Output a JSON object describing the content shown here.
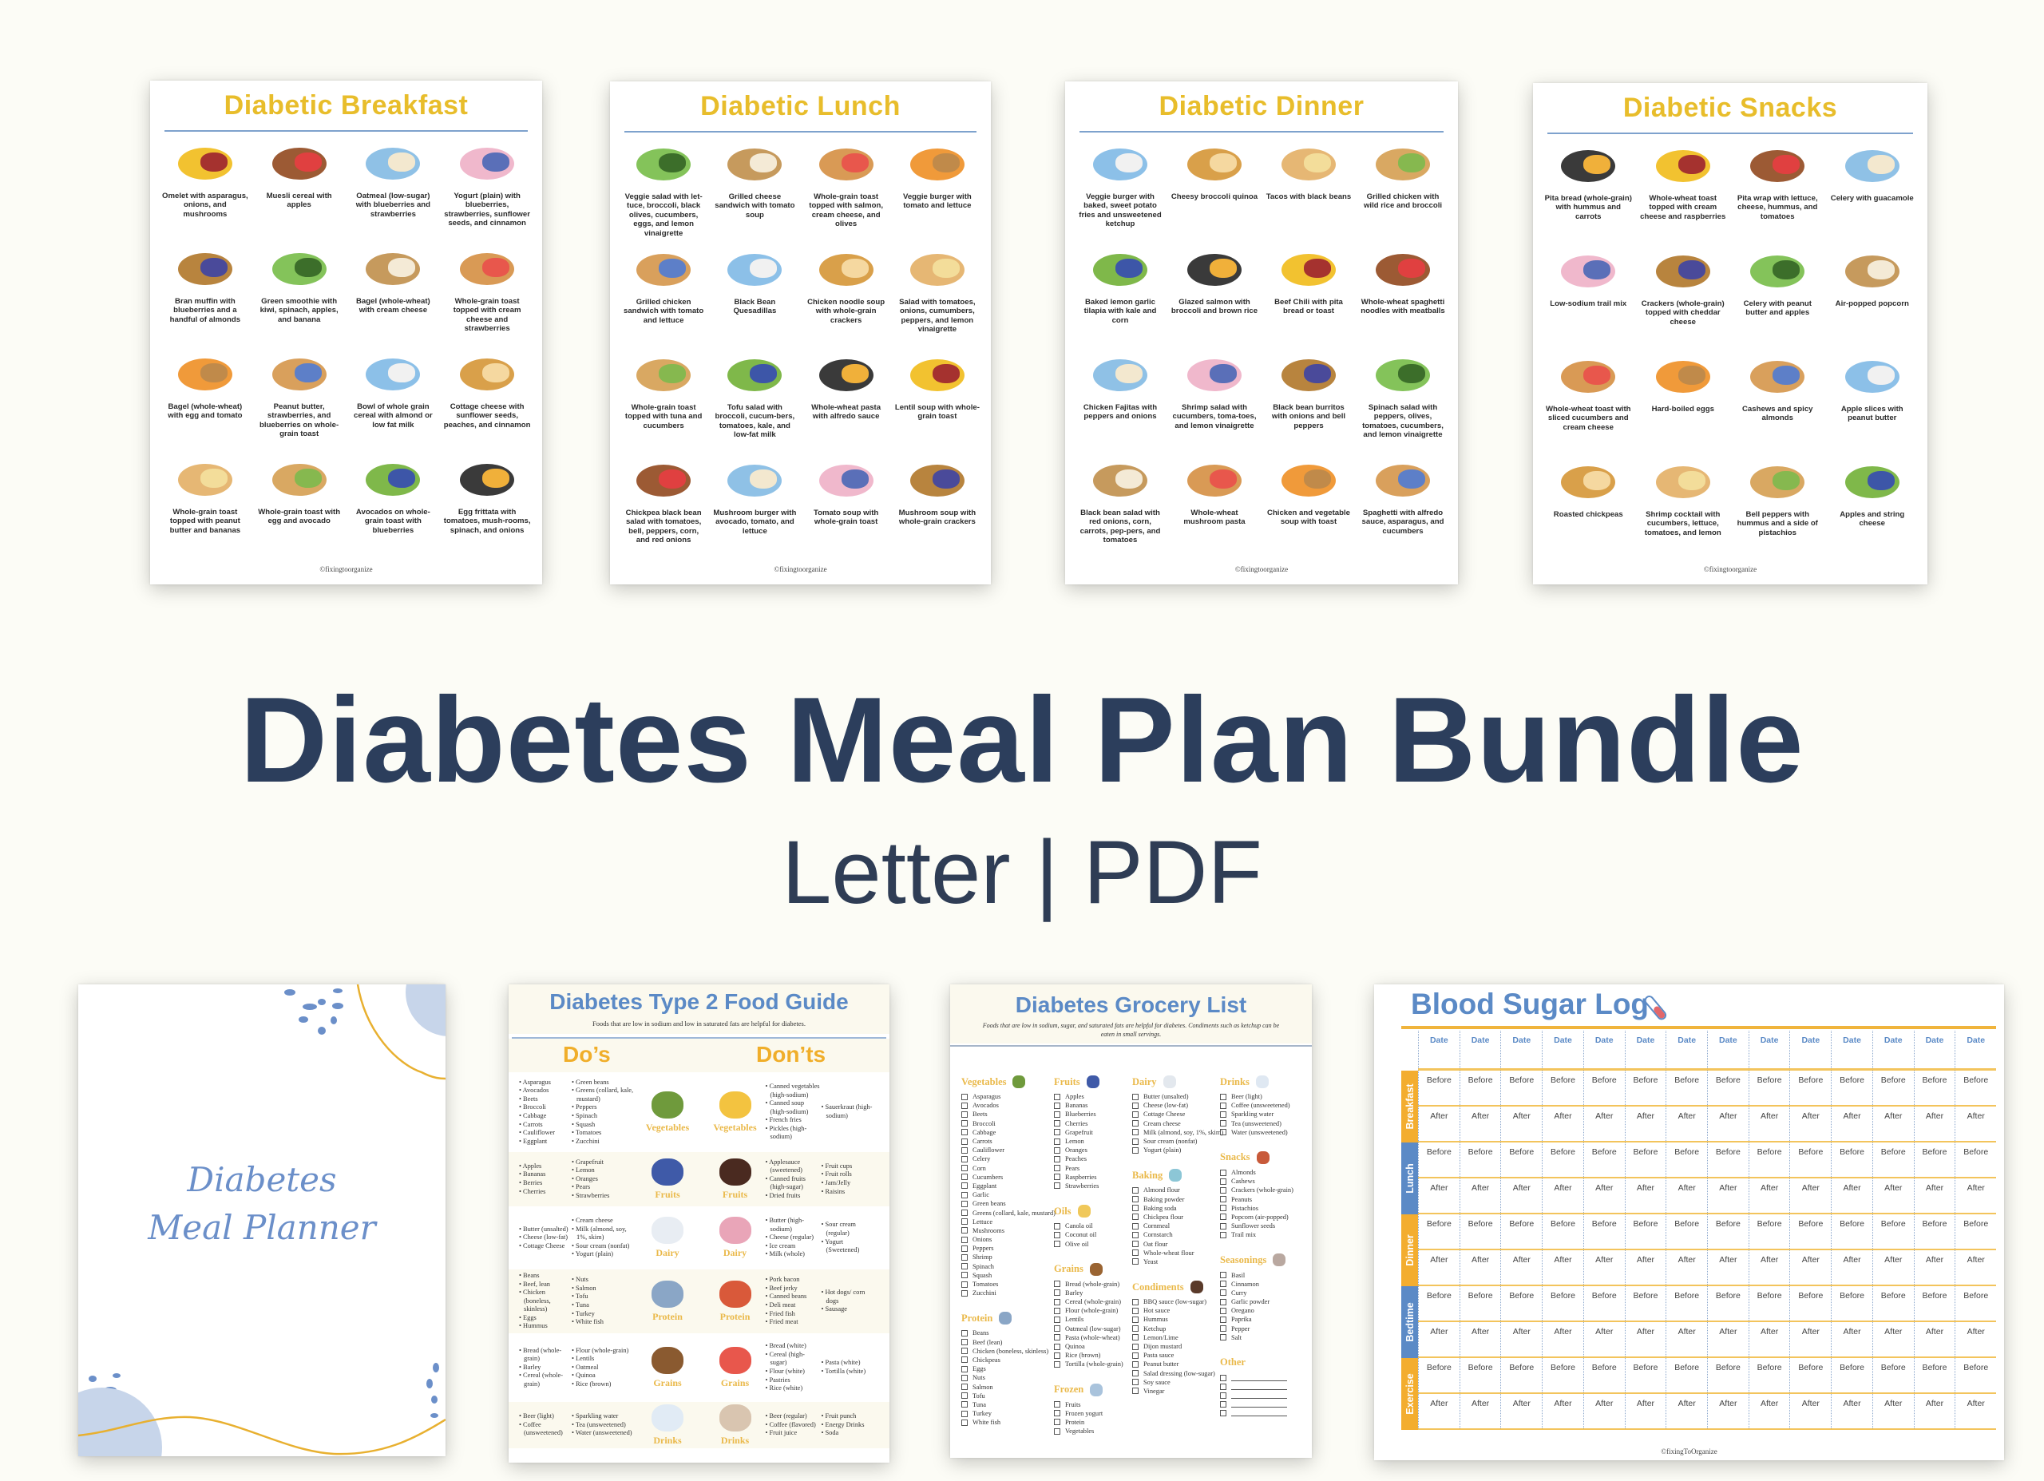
{
  "headline": "Diabetes Meal Plan Bundle",
  "subline": "Letter | PDF",
  "colors": {
    "navy": "#2c3e5c",
    "gold": "#e8bd2b",
    "blue": "#5b8ac6",
    "orange": "#f0b43c",
    "background": "#fcfcf6"
  },
  "food_pages": [
    {
      "title": "Diabetic Breakfast",
      "footer": "©fixingtoorganize",
      "items": [
        "Omelet with asparagus, onions, and mushrooms",
        "Muesli cereal with apples",
        "Oatmeal (low-sugar) with blueberries and strawberries",
        "Yogurt (plain) with blueberries, strawberries, sunflower seeds, and cinnamon",
        "Bran muffin with blueberries and a handful of almonds",
        "Green smoothie with kiwi, spinach, apples, and banana",
        "Bagel (whole-wheat) with cream cheese",
        "Whole-grain toast topped with cream cheese and strawberries",
        "Bagel (whole-wheat) with egg and tomato",
        "Peanut butter, strawberries, and blueberries on whole-grain toast",
        "Bowl of whole grain cereal with almond or low fat milk",
        "Cottage cheese with sunflower seeds, peaches, and cinnamon",
        "Whole-grain toast topped with peanut butter and bananas",
        "Whole-grain toast with egg and avocado",
        "Avocados on whole-grain toast with blueberries",
        "Egg frittata with tomatoes, mush-rooms, spinach, and onions"
      ]
    },
    {
      "title": "Diabetic Lunch",
      "footer": "©fixingtoorganize",
      "items": [
        "Veggie salad with let-tuce, broccoli, black olives, cucumbers, eggs, and lemon vinaigrette",
        "Grilled cheese sandwich with tomato soup",
        "Whole-grain toast topped with salmon, cream cheese, and olives",
        "Veggie burger with tomato and lettuce",
        "Grilled chicken sandwich with tomato and lettuce",
        "Black Bean Quesadillas",
        "Chicken noodle soup with whole-grain crackers",
        "Salad with tomatoes, onions, cumumbers, peppers, and lemon vinaigrette",
        "Whole-grain toast topped with tuna and cucumbers",
        "Tofu salad with broccoli, cucum-bers, tomatoes, kale, and low-fat milk",
        "Whole-wheat pasta with alfredo sauce",
        "Lentil soup with whole-grain toast",
        "Chickpea black bean salad with tomatoes, bell, peppers, corn, and red onions",
        "Mushroom burger with avocado, tomato, and lettuce",
        "Tomato soup with whole-grain toast",
        "Mushroom soup with whole-grain crackers"
      ]
    },
    {
      "title": "Diabetic Dinner",
      "footer": "©fixingtoorganize",
      "items": [
        "Veggie burger with baked, sweet potato fries and unsweetened ketchup",
        "Cheesy broccoli quinoa",
        "Tacos with black beans",
        "Grilled chicken with wild rice and broccoli",
        "Baked lemon garlic tilapia with kale and corn",
        "Glazed salmon with broccoli and brown rice",
        "Beef Chili with pita bread or toast",
        "Whole-wheat spaghetti noodles with meatballs",
        "Chicken Fajitas with peppers and onions",
        "Shrimp salad with cucumbers, toma-toes, and lemon vinaigrette",
        "Black bean burritos with onions and bell peppers",
        "Spinach salad with peppers, olives, tomatoes, cucumbers, and lemon vinaigrette",
        "Black bean salad with red onions, corn, carrots, pep-pers, and tomatoes",
        "Whole-wheat mushroom pasta",
        "Chicken and vegetable soup with toast",
        "Spaghetti with alfredo sauce, asparagus, and cucumbers"
      ]
    },
    {
      "title": "Diabetic Snacks",
      "footer": "©fixingtoorganize",
      "items": [
        "Pita bread (whole-grain) with hummus and carrots",
        "Whole-wheat toast topped with cream cheese and raspberries",
        "Pita wrap with lettuce, cheese, hummus, and tomatoes",
        "Celery with guacamole",
        "Low-sodium trail mix",
        "Crackers (whole-grain) topped with cheddar cheese",
        "Celery with peanut butter and apples",
        "Air-popped popcorn",
        "Whole-wheat toast with sliced cucumbers and cream cheese",
        "Hard-boiled eggs",
        "Cashews and spicy almonds",
        "Apple slices with peanut butter",
        "Roasted chickpeas",
        "Shrimp cocktail with cucumbers, lettuce, tomatoes, and lemon",
        "Bell peppers with hummus and a side of pistachios",
        "Apples and string cheese"
      ]
    }
  ],
  "planner": {
    "line1": "Diabetes",
    "line2": "Meal Planner"
  },
  "food_guide": {
    "title": "Diabetes Type 2 Food Guide",
    "subtitle": "Foods that are low in sodium and low in saturated fats are helpful for diabetes.",
    "dos": "Do’s",
    "donts": "Don’ts",
    "rows": [
      {
        "category": "Vegetables",
        "do_icon": "avocado-icon",
        "dont_icon": "french-fries-icon",
        "dos1": [
          "Asparagus",
          "Avocados",
          "Beets",
          "Broccoli",
          "Cabbage",
          "Carrots",
          "Cauliflower",
          "Eggplant"
        ],
        "dos2": [
          "Green beans",
          "Greens (collard, kale, mustard)",
          "Peppers",
          "Spinach",
          "Squash",
          "Tomatoes",
          "Zucchini"
        ],
        "donts1": [
          "Canned vegetables (high-sodium)",
          "Canned soup (high-sodium)",
          "French fries",
          "Pickles (high-sodium)"
        ],
        "donts2": [
          "Sauerkraut (high-sodium)"
        ]
      },
      {
        "category": "Fruits",
        "do_icon": "blueberries-icon",
        "dont_icon": "raisins-icon",
        "dos1": [
          "Apples",
          "Bananas",
          "Berries",
          "Cherries"
        ],
        "dos2": [
          "Grapefruit",
          "Lemon",
          "Oranges",
          "Pears",
          "Strawberries"
        ],
        "donts1": [
          "Applesauce (sweetened)",
          "Canned fruits (high-sugar)",
          "Dried fruits"
        ],
        "donts2": [
          "Fruit cups",
          "Fruit rolls",
          "Jam/Jelly",
          "Raisins"
        ]
      },
      {
        "category": "Dairy",
        "do_icon": "milk-jug-icon",
        "dont_icon": "sundae-icon",
        "dos1": [
          "Butter (unsalted)",
          "Cheese (low-fat)",
          "Cottage Cheese"
        ],
        "dos2": [
          "Cream cheese",
          "Milk (almond, soy, 1%, skim)",
          "Sour cream (nonfat)",
          "Yogurt (plain)"
        ],
        "donts1": [
          "Butter (high-sodium)",
          "Cheese (regular)",
          "Ice cream",
          "Milk (whole)"
        ],
        "donts2": [
          "Sour cream (regular)",
          "Yogurt (Sweetened)"
        ]
      },
      {
        "category": "Protein",
        "do_icon": "fish-icon",
        "dont_icon": "hot-dog-icon",
        "dos1": [
          "Beans",
          "Beef, lean",
          "Chicken (boneless, skinless)",
          "Eggs",
          "Hummus"
        ],
        "dos2": [
          "Nuts",
          "Salmon",
          "Tofu",
          "Tuna",
          "Turkey",
          "White fish"
        ],
        "donts1": [
          "Pork bacon",
          "Beef jerky",
          "Canned beans",
          "Deli meat",
          "Fried fish",
          "Fried meat"
        ],
        "donts2": [
          "Hot dogs/ corn dogs",
          "Sausage"
        ]
      },
      {
        "category": "Grains",
        "do_icon": "bread-icon",
        "dont_icon": "donut-icon",
        "dos1": [
          "Bread (whole-grain)",
          "Barley",
          "Cereal (whole-grain)"
        ],
        "dos2": [
          "Flour (whole-grain)",
          "Lentils",
          "Oatmeal",
          "Quinoa",
          "Rice (brown)"
        ],
        "donts1": [
          "Bread (white)",
          "Cereal (high-sugar)",
          "Flour (white)",
          "Pastries",
          "Rice (white)"
        ],
        "donts2": [
          "Pasta (white)",
          "Tortilla (white)"
        ]
      },
      {
        "category": "Drinks",
        "do_icon": "water-bottle-icon",
        "dont_icon": "soda-can-icon",
        "dos1": [
          "Beer (light)",
          "Coffee (unsweetened)"
        ],
        "dos2": [
          "Sparkling water",
          "Tea (unsweetened)",
          "Water (unsweetened)"
        ],
        "donts1": [
          "Beer (regular)",
          "Coffee (flavored)",
          "Fruit juice"
        ],
        "donts2": [
          "Fruit punch",
          "Energy Drinks",
          "Soda"
        ]
      }
    ]
  },
  "grocery": {
    "title": "Diabetes Grocery List",
    "subtitle": "Foods that are low in sodium, sugar, and saturated fats are helpful for diabetes. Condiments such as ketchup can be eaten in small servings.",
    "columns": [
      [
        {
          "heading": "Vegetables",
          "icon": "avocado-icon",
          "items": [
            "Asparagus",
            "Avocados",
            "Beets",
            "Broccoli",
            "Cabbage",
            "Carrots",
            "Cauliflower",
            "Celery",
            "Corn",
            "Cucumbers",
            "Eggplant",
            "Garlic",
            "Green beans",
            "Greens (collard, kale, mustard)",
            "Lettuce",
            "Mushrooms",
            "Onions",
            "Peppers",
            "Shrimp",
            "Spinach",
            "Squash",
            "Tomatoes",
            "Zucchini"
          ]
        },
        {
          "heading": "Protein",
          "icon": "fish-icon",
          "items": [
            "Beans",
            "Beef (lean)",
            "Chicken (boneless, skinless)",
            "Chickpeas",
            "Eggs",
            "Nuts",
            "Salmon",
            "Tofu",
            "Tuna",
            "Turkey",
            "White fish"
          ]
        }
      ],
      [
        {
          "heading": "Fruits",
          "icon": "blueberries-icon",
          "items": [
            "Apples",
            "Bananas",
            "Blueberries",
            "Cherries",
            "Grapefruit",
            "Lemon",
            "Oranges",
            "Peaches",
            "Pears",
            "Raspberries",
            "Strawberries"
          ]
        },
        {
          "heading": "Oils",
          "icon": "oil-bottle-icon",
          "items": [
            "Canola oil",
            "Coconut oil",
            "Olive oil"
          ]
        },
        {
          "heading": "Grains",
          "icon": "bread-icon",
          "items": [
            "Bread (whole-grain)",
            "Barley",
            "Cereal (whole-grain)",
            "Flour (whole-grain)",
            "Lentils",
            "Oatmeal (low-sugar)",
            "Pasta (whole-wheat)",
            "Quinoa",
            "Rice (brown)",
            "Tortilla (whole-grain)"
          ]
        },
        {
          "heading": "Frozen",
          "icon": "frozen-food-icon",
          "items": [
            "Fruits",
            "Frozen yogurt",
            "Protein",
            "Vegetables"
          ]
        }
      ],
      [
        {
          "heading": "Dairy",
          "icon": "milk-jug-icon",
          "items": [
            "Butter (unsalted)",
            "Cheese (low-fat)",
            "Cottage Cheese",
            "Cream cheese",
            "Milk (almond, soy, 1%, skim)",
            "Sour cream (nonfat)",
            "Yogurt (plain)"
          ]
        },
        {
          "heading": "Baking",
          "icon": "spatula-icon",
          "items": [
            "Almond flour",
            "Baking powder",
            "Baking soda",
            "Chickpea flour",
            "Cornmeal",
            "Cornstarch",
            "Oat flour",
            "Whole-wheat flour",
            "Yeast"
          ]
        },
        {
          "heading": "Condiments",
          "icon": "soy-sauce-icon",
          "items": [
            "BBQ sauce (low-sugar)",
            "Hot sauce",
            "Hummus",
            "Ketchup",
            "Lemon/Lime",
            "Dijon mustard",
            "Pasta sauce",
            "Peanut butter",
            "Salad dressing (low-sugar)",
            "Soy sauce",
            "Vinegar"
          ]
        }
      ],
      [
        {
          "heading": "Drinks",
          "icon": "glass-bottle-icon",
          "items": [
            "Beer (light)",
            "Coffee (unsweetened)",
            "Sparkling water",
            "Tea (unsweetened)",
            "Water (unsweetened)"
          ]
        },
        {
          "heading": "Snacks",
          "icon": "snack-jar-icon",
          "items": [
            "Almonds",
            "Cashews",
            "Crackers (whole-grain)",
            "Peanuts",
            "Pistachios",
            "Popcorn (air-popped)",
            "Sunflower seeds",
            "Trail mix"
          ]
        },
        {
          "heading": "Seasonings",
          "icon": "salt-pepper-icon",
          "items": [
            "Basil",
            "Cinnamon",
            "Curry",
            "Garlic powder",
            "Oregano",
            "Paprika",
            "Pepper",
            "Salt"
          ]
        },
        {
          "heading": "Other",
          "icon": "",
          "items": [
            "",
            "",
            "",
            "",
            ""
          ]
        }
      ]
    ]
  },
  "log": {
    "title": "Blood Sugar Log",
    "date_label": "Date",
    "before_label": "Before",
    "after_label": "After",
    "columns": 14,
    "groups": [
      {
        "label": "Breakfast",
        "color": "#f3ad2f"
      },
      {
        "label": "Lunch",
        "color": "#5b8ac6"
      },
      {
        "label": "Dinner",
        "color": "#f3ad2f"
      },
      {
        "label": "Bedtime",
        "color": "#5b8ac6"
      },
      {
        "label": "Exercise",
        "color": "#f3ad2f"
      }
    ],
    "footer": "©fixingToOrganize"
  }
}
